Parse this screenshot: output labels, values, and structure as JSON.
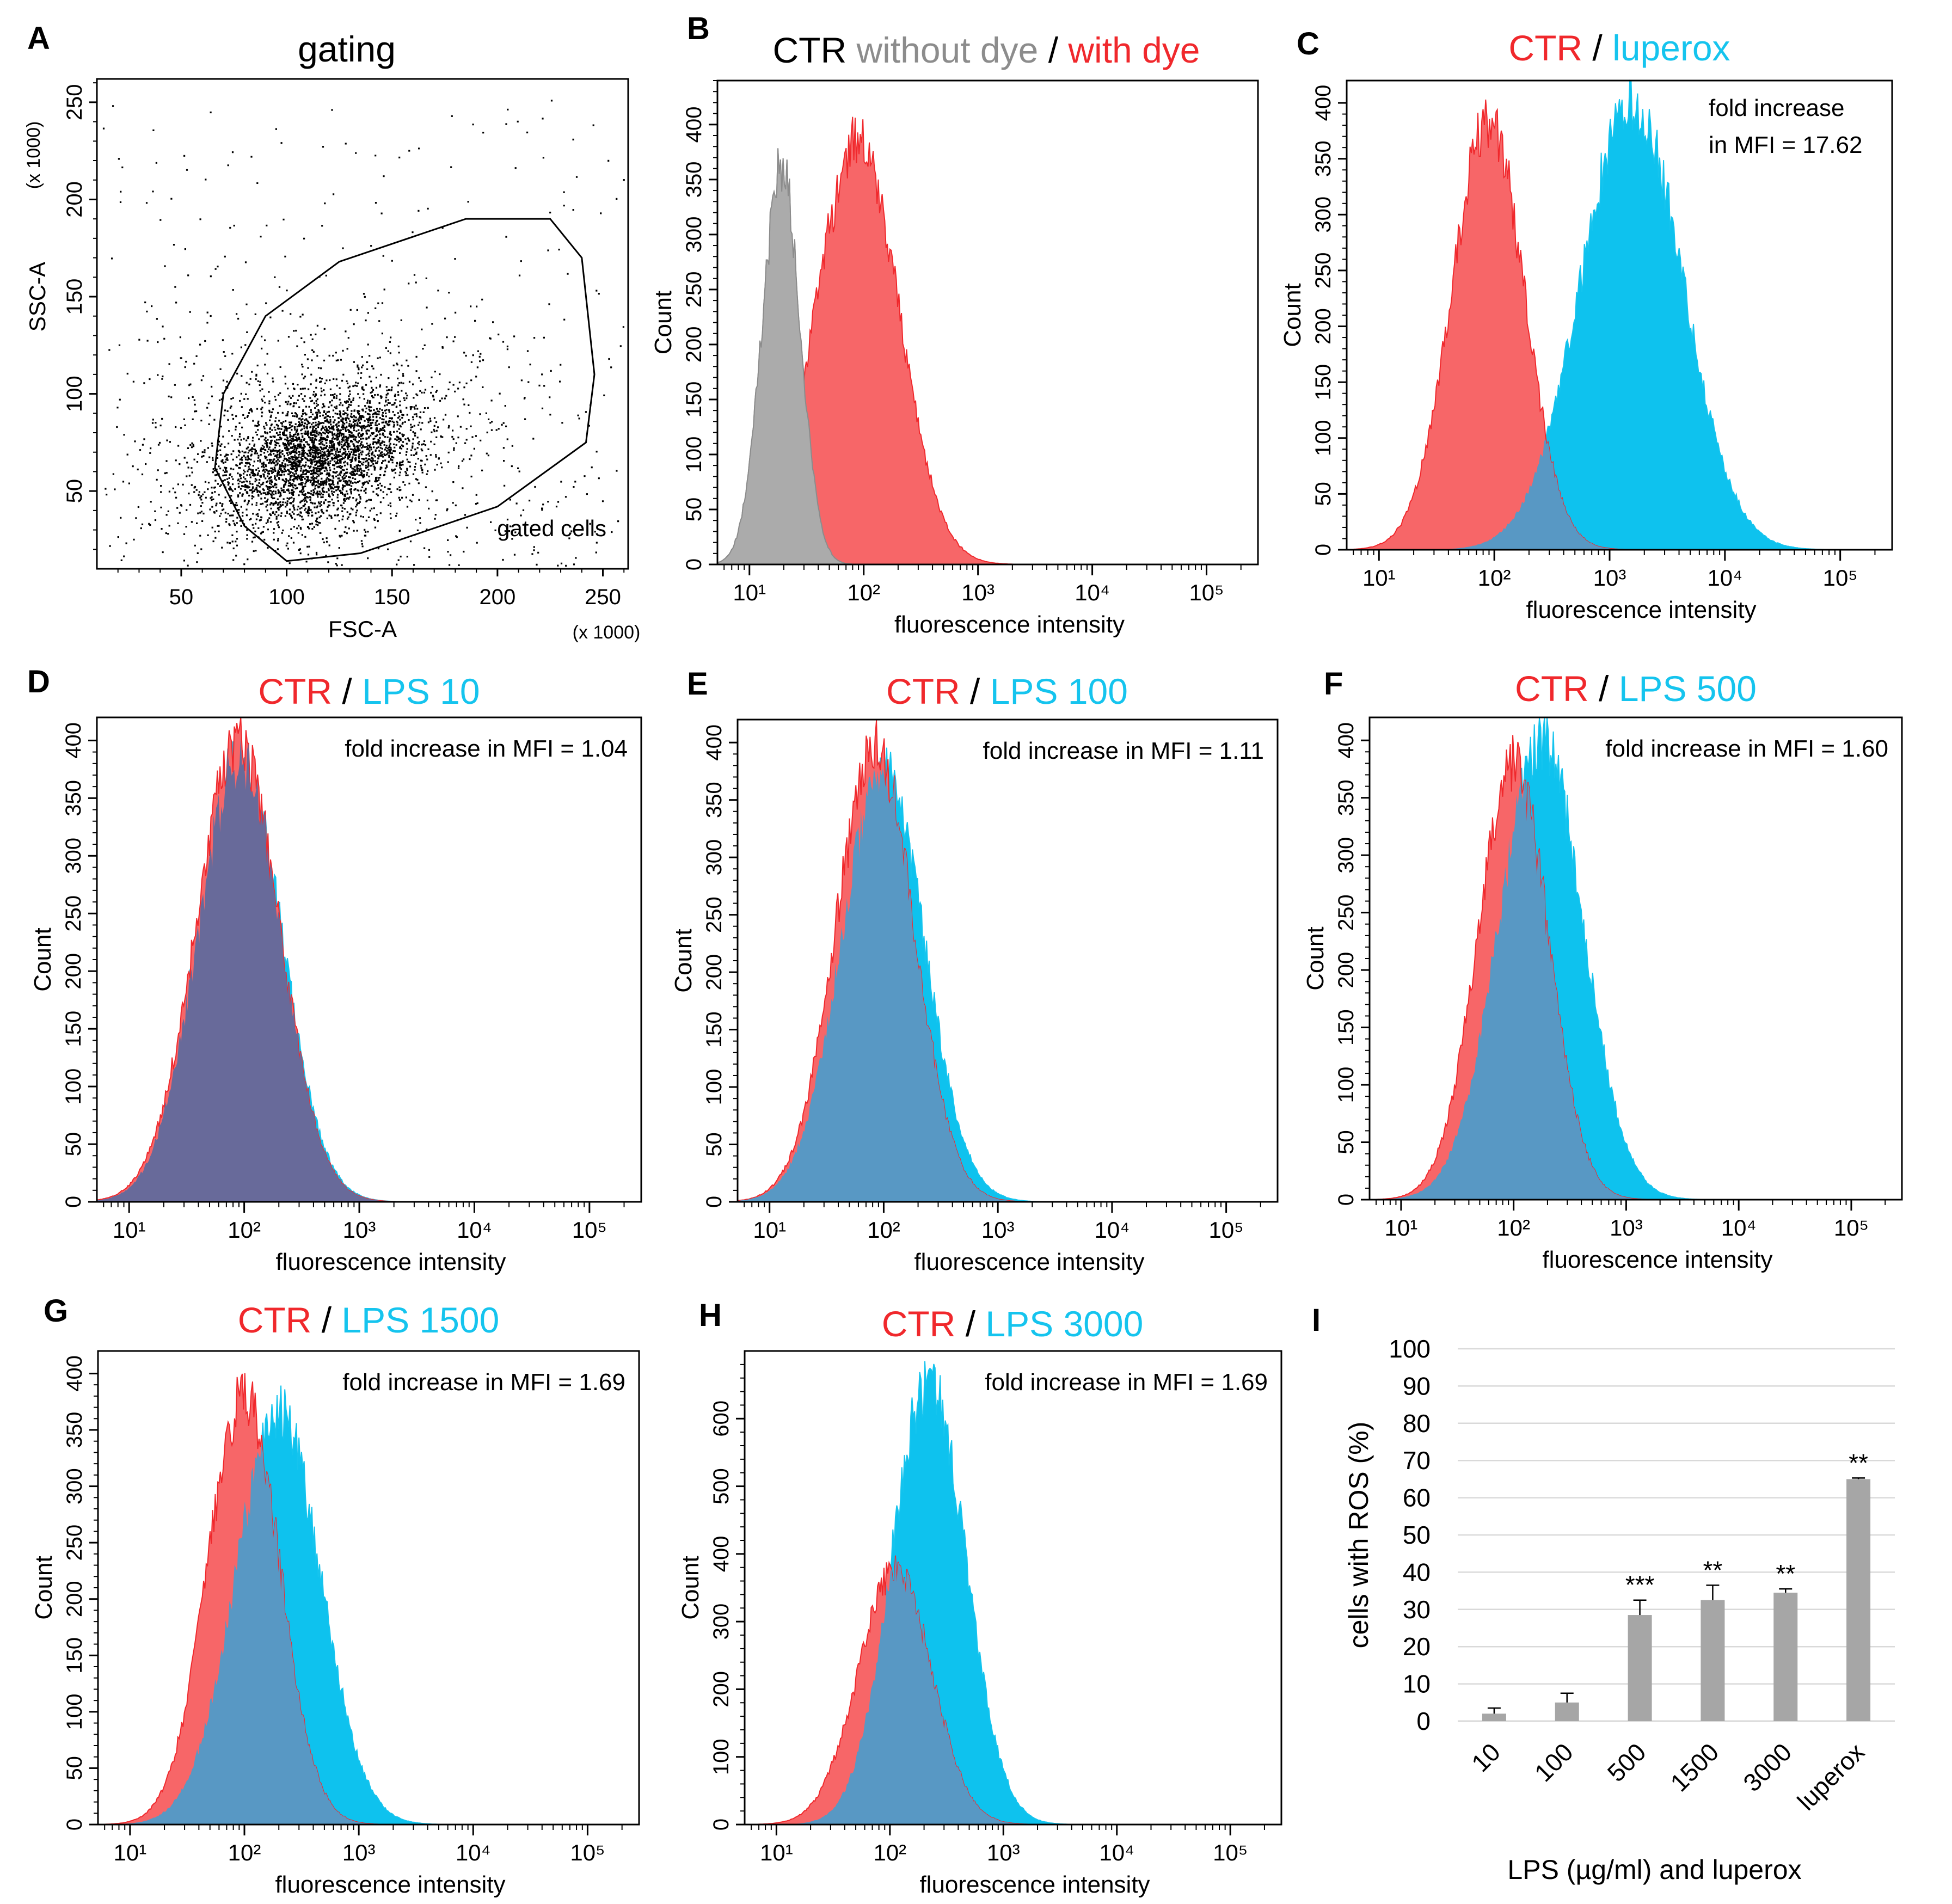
{
  "colors": {
    "ctr": "#f0282c",
    "ctr_fill": "#f76668",
    "lps": "#15c4ee",
    "lps_fill": "#0ec2ee",
    "overlap": "#5898c4",
    "overlap_d": "#686a9a",
    "gray": "#8c8c8c",
    "gray_fill": "#ababab",
    "bar": "#a6a6a6"
  },
  "chart_data": [
    {
      "id": "A",
      "type": "scatter",
      "letter": "A",
      "title": "gating",
      "xlabel": "FSC-A",
      "ylabel": "SSC-A",
      "x_mult": "(x 1000)",
      "y_mult": "(x 1000)",
      "xlim": [
        10,
        262
      ],
      "ylim": [
        10,
        262
      ],
      "xticks": [
        "50",
        "100",
        "150",
        "200",
        "250"
      ],
      "yticks": [
        "50",
        "100",
        "150",
        "200",
        "250"
      ],
      "cloud": {
        "center": [
          115,
          68
        ],
        "n": 4200
      },
      "gate": {
        "label": "gated cells",
        "polygon": [
          [
            100,
            14
          ],
          [
            135,
            18
          ],
          [
            200,
            42
          ],
          [
            242,
            75
          ],
          [
            246,
            110
          ],
          [
            240,
            170
          ],
          [
            225,
            190
          ],
          [
            185,
            190
          ],
          [
            125,
            168
          ],
          [
            90,
            140
          ],
          [
            70,
            100
          ],
          [
            66,
            62
          ],
          [
            80,
            32
          ]
        ]
      }
    },
    {
      "id": "B",
      "type": "histogram",
      "letter": "B",
      "xlabel": "fluorescence intensity",
      "ylabel": "Count",
      "title_parts": [
        {
          "text": "CTR",
          "color": "#000000"
        },
        {
          "text": " without dye",
          "color": "#8c8c8c"
        },
        {
          "text": " / ",
          "color": "#000000"
        },
        {
          "text": "with dye",
          "color": "#f0282c"
        }
      ],
      "ymax": 440,
      "yticks": [
        "0",
        "50",
        "100",
        "150",
        "200",
        "250",
        "300",
        "350",
        "400"
      ],
      "xticks": [
        "10¹",
        "10²",
        "10³",
        "10⁴",
        "10⁵"
      ],
      "annotation": [],
      "series": [
        {
          "name": "without dye",
          "color_key": "gray",
          "log10_peak": 1.28,
          "sigma": 0.17,
          "peak_count": 360
        },
        {
          "name": "with dye",
          "color_key": "ctr",
          "log10_peak": 1.95,
          "sigma": 0.37,
          "peak_count": 385
        }
      ]
    },
    {
      "id": "C",
      "type": "histogram",
      "letter": "C",
      "xlabel": "fluorescence intensity",
      "ylabel": "Count",
      "title_parts": [
        {
          "text": "CTR",
          "color": "#f0282c"
        },
        {
          "text": " / ",
          "color": "#000000"
        },
        {
          "text": "luperox",
          "color": "#15c4ee"
        }
      ],
      "ymax": 420,
      "yticks": [
        "0",
        "50",
        "100",
        "150",
        "200",
        "250",
        "300",
        "350",
        "400"
      ],
      "xticks": [
        "10¹",
        "10²",
        "10³",
        "10⁴",
        "10⁵"
      ],
      "annotation": [
        "fold increase",
        "in MFI = 17.62"
      ],
      "series": [
        {
          "name": "CTR",
          "color_key": "ctr",
          "log10_peak": 1.95,
          "sigma": 0.32,
          "peak_count": 385
        },
        {
          "name": "luperox",
          "color_key": "lps",
          "log10_peak": 3.2,
          "sigma": 0.45,
          "peak_count": 400
        }
      ]
    },
    {
      "id": "D",
      "type": "histogram",
      "letter": "D",
      "xlabel": "fluorescence intensity",
      "ylabel": "Count",
      "title_parts": [
        {
          "text": "CTR",
          "color": "#f0282c"
        },
        {
          "text": " / ",
          "color": "#000000"
        },
        {
          "text": "LPS 10",
          "color": "#15c4ee"
        }
      ],
      "ymax": 420,
      "yticks": [
        "0",
        "50",
        "100",
        "150",
        "200",
        "250",
        "300",
        "350",
        "400"
      ],
      "xticks": [
        "10¹",
        "10²",
        "10³",
        "10⁴",
        "10⁵"
      ],
      "annotation": [
        "fold increase in MFI = 1.04"
      ],
      "overlap_dark": true,
      "series": [
        {
          "name": "CTR",
          "color_key": "ctr",
          "log10_peak": 1.95,
          "sigma": 0.37,
          "peak_count": 395
        },
        {
          "name": "LPS 10",
          "color_key": "lps",
          "log10_peak": 1.97,
          "sigma": 0.37,
          "peak_count": 385
        }
      ]
    },
    {
      "id": "E",
      "type": "histogram",
      "letter": "E",
      "xlabel": "fluorescence intensity",
      "ylabel": "Count",
      "title_parts": [
        {
          "text": "CTR",
          "color": "#f0282c"
        },
        {
          "text": " / ",
          "color": "#000000"
        },
        {
          "text": "LPS 100",
          "color": "#15c4ee"
        }
      ],
      "ymax": 420,
      "yticks": [
        "0",
        "50",
        "100",
        "150",
        "200",
        "250",
        "300",
        "350",
        "400"
      ],
      "xticks": [
        "10¹",
        "10²",
        "10³",
        "10⁴",
        "10⁵"
      ],
      "annotation": [
        "fold increase in MFI = 1.11"
      ],
      "series": [
        {
          "name": "CTR",
          "color_key": "ctr",
          "log10_peak": 1.93,
          "sigma": 0.35,
          "peak_count": 395
        },
        {
          "name": "LPS 100",
          "color_key": "lps",
          "log10_peak": 2.0,
          "sigma": 0.37,
          "peak_count": 375
        }
      ]
    },
    {
      "id": "F",
      "type": "histogram",
      "letter": "F",
      "xlabel": "fluorescence intensity",
      "ylabel": "Count",
      "title_parts": [
        {
          "text": "CTR",
          "color": "#f0282c"
        },
        {
          "text": " / ",
          "color": "#000000"
        },
        {
          "text": "LPS 500",
          "color": "#15c4ee"
        }
      ],
      "ymax": 420,
      "yticks": [
        "0",
        "50",
        "100",
        "150",
        "200",
        "250",
        "300",
        "350",
        "400"
      ],
      "xticks": [
        "10¹",
        "10²",
        "10³",
        "10⁴",
        "10⁵"
      ],
      "annotation": [
        "fold increase in MFI = 1.60"
      ],
      "series": [
        {
          "name": "CTR",
          "color_key": "ctr",
          "log10_peak": 2.0,
          "sigma": 0.32,
          "peak_count": 380
        },
        {
          "name": "LPS 500",
          "color_key": "lps",
          "log10_peak": 2.25,
          "sigma": 0.38,
          "peak_count": 400
        }
      ]
    },
    {
      "id": "G",
      "type": "histogram",
      "letter": "G",
      "xlabel": "fluorescence intensity",
      "ylabel": "Count",
      "title_parts": [
        {
          "text": "CTR",
          "color": "#f0282c"
        },
        {
          "text": " / ",
          "color": "#000000"
        },
        {
          "text": "LPS 1500",
          "color": "#15c4ee"
        }
      ],
      "ymax": 420,
      "yticks": [
        "0",
        "50",
        "100",
        "150",
        "200",
        "250",
        "300",
        "350",
        "400"
      ],
      "xticks": [
        "10¹",
        "10²",
        "10³",
        "10⁴",
        "10⁵"
      ],
      "annotation": [
        "fold increase in MFI = 1.69"
      ],
      "series": [
        {
          "name": "CTR",
          "color_key": "ctr",
          "log10_peak": 2.0,
          "sigma": 0.32,
          "peak_count": 380
        },
        {
          "name": "LPS 1500",
          "color_key": "lps",
          "log10_peak": 2.3,
          "sigma": 0.38,
          "peak_count": 365
        }
      ]
    },
    {
      "id": "H",
      "type": "histogram",
      "letter": "H",
      "xlabel": "fluorescence intensity",
      "ylabel": "Count",
      "title_parts": [
        {
          "text": "CTR",
          "color": "#f0282c"
        },
        {
          "text": " / ",
          "color": "#000000"
        },
        {
          "text": "LPS 3000",
          "color": "#15c4ee"
        }
      ],
      "ymax": 700,
      "yticks": [
        "0",
        "100",
        "200",
        "300",
        "400",
        "500",
        "600"
      ],
      "xticks": [
        "10¹",
        "10²",
        "10³",
        "10⁴",
        "10⁵"
      ],
      "annotation": [
        "fold increase in MFI = 1.69"
      ],
      "series": [
        {
          "name": "CTR",
          "color_key": "ctr",
          "log10_peak": 2.05,
          "sigma": 0.33,
          "peak_count": 375
        },
        {
          "name": "LPS 3000",
          "color_key": "lps",
          "log10_peak": 2.35,
          "sigma": 0.33,
          "peak_count": 660
        }
      ]
    },
    {
      "id": "I",
      "type": "bar",
      "letter": "I",
      "title": "",
      "categories": [
        "10",
        "100",
        "500",
        "1500",
        "3000",
        "luperox"
      ],
      "values": [
        2,
        5,
        28.5,
        32.5,
        34.5,
        65
      ],
      "errors": [
        1.5,
        2.5,
        4,
        4,
        1,
        0.3
      ],
      "significance": [
        "",
        "",
        "***",
        "**",
        "**",
        "**"
      ],
      "xlabel": "LPS (µg/ml) and luperox",
      "ylabel": "cells with ROS (%)",
      "ylim": [
        0,
        100
      ],
      "yticks": [
        "0",
        "10",
        "20",
        "30",
        "40",
        "50",
        "60",
        "70",
        "80",
        "90",
        "100"
      ]
    }
  ]
}
